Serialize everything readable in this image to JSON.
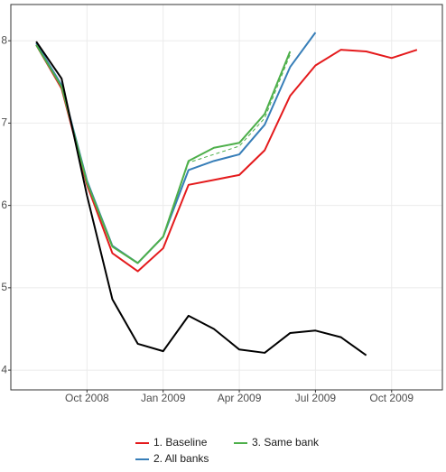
{
  "chart_data": {
    "type": "line",
    "x": [
      "2008-08",
      "2008-09",
      "2008-10",
      "2008-11",
      "2008-12",
      "2009-01",
      "2009-02",
      "2009-03",
      "2009-04",
      "2009-05",
      "2009-06",
      "2009-07",
      "2009-08",
      "2009-09",
      "2009-10",
      "2009-11"
    ],
    "series": [
      {
        "name": "1. Baseline",
        "color": "#e41a1c",
        "values": [
          7.95,
          7.42,
          6.25,
          5.42,
          5.2,
          5.48,
          6.25,
          6.31,
          6.37,
          6.67,
          7.33,
          7.7,
          7.89,
          7.87,
          7.79,
          7.89
        ]
      },
      {
        "name": "2. All banks",
        "color": "#377eb8",
        "values": [
          7.97,
          7.46,
          6.3,
          5.51,
          5.3,
          5.62,
          6.43,
          6.54,
          6.62,
          6.98,
          7.68,
          8.1,
          null,
          null,
          null,
          null
        ]
      },
      {
        "name": "3. Same bank",
        "color": "#4daf4a",
        "values": [
          7.95,
          7.44,
          6.28,
          5.5,
          5.3,
          5.62,
          6.54,
          6.7,
          6.76,
          7.11,
          7.87,
          null,
          null,
          null,
          null,
          null
        ]
      },
      {
        "color": "#4daf4a",
        "dash": true,
        "values": [
          null,
          null,
          null,
          null,
          null,
          5.62,
          6.52,
          6.62,
          6.72,
          7.06,
          7.83,
          null,
          null,
          null,
          null,
          null
        ]
      },
      {
        "color": "#000000",
        "values": [
          7.99,
          7.54,
          6.12,
          4.86,
          4.32,
          4.23,
          4.66,
          4.5,
          4.25,
          4.21,
          4.45,
          4.48,
          4.4,
          4.18,
          null,
          null
        ]
      }
    ],
    "xlim": [
      "2008-07",
      "2009-12"
    ],
    "xticks": [
      {
        "value": "2008-10",
        "label": "Oct 2008"
      },
      {
        "value": "2009-01",
        "label": "Jan 2009"
      },
      {
        "value": "2009-04",
        "label": "Apr 2009"
      },
      {
        "value": "2009-07",
        "label": "Jul 2009"
      },
      {
        "value": "2009-10",
        "label": "Oct 2009"
      }
    ],
    "ylim": [
      3.76,
      8.44
    ],
    "yticks": [
      4,
      5,
      6,
      7,
      8
    ],
    "grid": true,
    "legend": "bottom"
  }
}
